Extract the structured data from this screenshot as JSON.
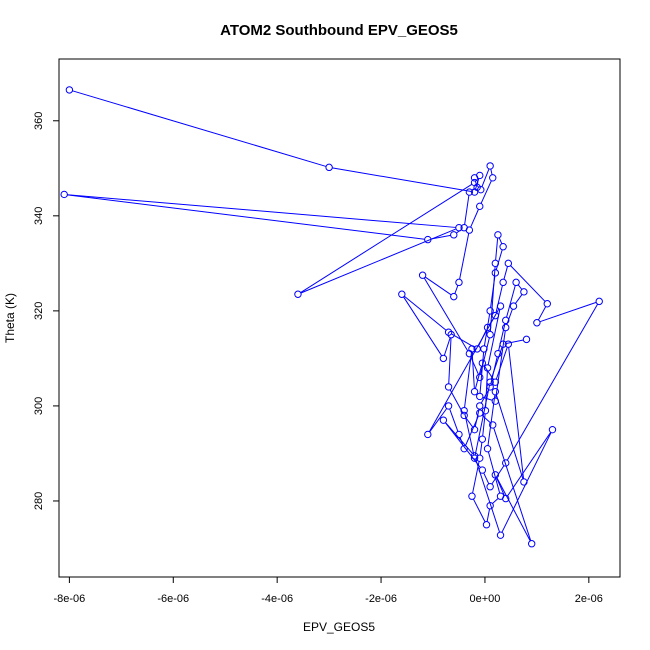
{
  "chart_data": {
    "type": "line",
    "title": "ATOM2 Southbound EPV_GEOS5",
    "xlabel": "EPV_GEOS5",
    "ylabel": "Theta (K)",
    "xlim": [
      -8.2e-06,
      2.6e-06
    ],
    "ylim": [
      264,
      373
    ],
    "x_ticks": [
      {
        "value": -8e-06,
        "label": "-8e-06"
      },
      {
        "value": -6e-06,
        "label": "-6e-06"
      },
      {
        "value": -4e-06,
        "label": "-4e-06"
      },
      {
        "value": -2e-06,
        "label": "-2e-06"
      },
      {
        "value": 0,
        "label": "0e+00"
      },
      {
        "value": 2e-06,
        "label": "2e-06"
      }
    ],
    "y_ticks": [
      {
        "value": 280,
        "label": "280"
      },
      {
        "value": 300,
        "label": "300"
      },
      {
        "value": 320,
        "label": "320"
      },
      {
        "value": 340,
        "label": "340"
      },
      {
        "value": 360,
        "label": "360"
      }
    ],
    "grid": false,
    "series": [
      {
        "color": "#0000ff",
        "marker": "open-circle",
        "x": [
          -8e-06,
          -3e-06,
          -2e-07,
          -1e-07,
          -2e-07,
          -1.5e-07,
          -3e-07,
          -4e-07,
          -6e-07,
          -1.1e-06,
          -8.1e-06,
          -5e-07,
          -3.6e-06,
          -2e-07,
          -8e-08,
          1e-07,
          1.5e-07,
          -1e-07,
          -3e-07,
          -5e-07,
          -6e-07,
          -1.2e-06,
          -3e-07,
          -1e-07,
          1e-07,
          2e-07,
          2.5e-07,
          3.5e-07,
          2e-07,
          1e-07,
          -2e-08,
          -1e-07,
          2e-07,
          4e-07,
          5.5e-07,
          7.5e-07,
          6e-07,
          4e-07,
          2.5e-07,
          1e-07,
          -1e-07,
          -2e-07,
          -4e-07,
          -7e-07,
          -6.5e-07,
          -8e-07,
          -1.6e-06,
          -7e-07,
          -1.5e-07,
          5e-08,
          2e-07,
          3.5e-07,
          4.5e-07,
          1.2e-06,
          1e-06,
          2.2e-06,
          4e-07,
          1e-07,
          -5e-08,
          -8e-07,
          -2e-07,
          3e-07,
          1.3e-06,
          4e-07,
          2e-07,
          9e-07,
          1.5e-07,
          -1e-07,
          -4e-07,
          -5e-07,
          -7e-07,
          -1.1e-06,
          3e-07,
          5e-08,
          1e-08,
          -5e-08,
          -1e-07,
          -2.5e-07,
          3e-08,
          1e-07,
          3e-07,
          5e-08,
          2e-07,
          7.5e-07,
          4.5e-07,
          2e-07,
          -5e-08,
          -2e-07,
          -2.5e-07,
          -4e-07,
          -2e-07,
          1e-07,
          3.5e-07,
          8e-07
        ],
        "y": [
          366.5,
          350.2,
          345.0,
          348.5,
          348.0,
          346.0,
          345.0,
          337.5,
          336.0,
          335.0,
          344.5,
          337.5,
          323.5,
          347.0,
          345.5,
          350.5,
          348.0,
          342.0,
          337.0,
          326.0,
          323.0,
          327.5,
          311.0,
          306.0,
          315.0,
          330.0,
          336.0,
          333.5,
          328.0,
          320.0,
          312.0,
          302.0,
          301.0,
          316.5,
          321.0,
          324.0,
          326.0,
          318.0,
          311.0,
          304.0,
          300.0,
          295.0,
          298.0,
          304.0,
          315.0,
          310.0,
          323.5,
          315.5,
          312.0,
          316.5,
          319.0,
          326.0,
          330.0,
          321.5,
          317.5,
          322.0,
          288.0,
          283.0,
          286.5,
          297.0,
          289.5,
          272.8,
          295.0,
          280.5,
          285.5,
          271.0,
          296.0,
          298.5,
          291.0,
          294.0,
          300.0,
          294.0,
          321.0,
          308.0,
          299.0,
          293.0,
          289.0,
          281.0,
          275.0,
          279.0,
          281.0,
          291.0,
          303.0,
          284.0,
          313.0,
          305.0,
          309.0,
          303.0,
          312.0,
          299.0,
          289.0,
          305.0,
          313.0,
          314.0
        ]
      }
    ]
  }
}
